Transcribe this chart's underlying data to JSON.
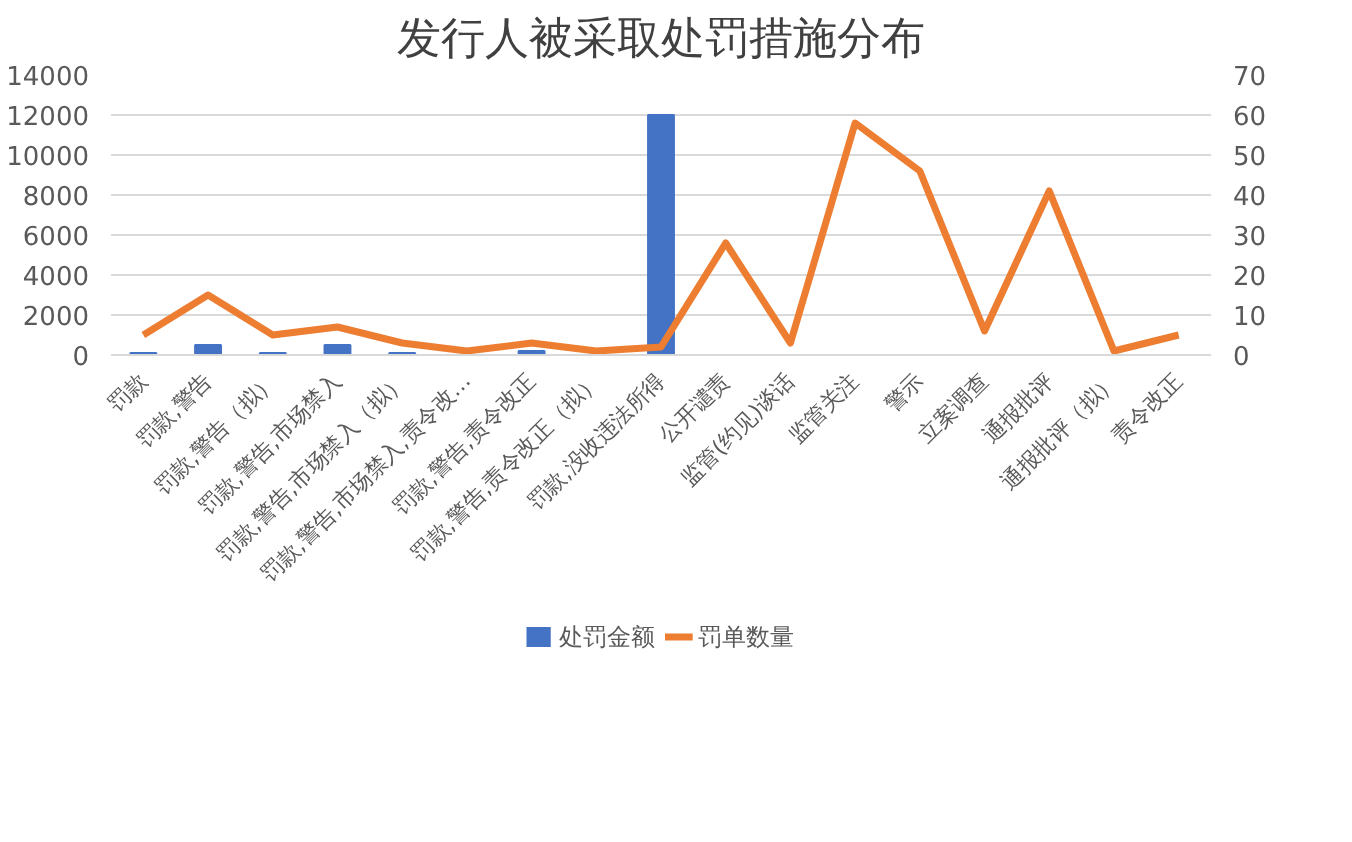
{
  "chart_data": {
    "type": "bar",
    "title": "发行人被采取处罚措施分布",
    "categories": [
      "罚款",
      "罚款,警告",
      "罚款,警告（拟）",
      "罚款,警告,市场禁入",
      "罚款,警告,市场禁入（拟）",
      "罚款,警告,市场禁入,责令改…",
      "罚款,警告,责令改正",
      "罚款,警告,责令改正（拟）",
      "罚款,没收违法所得",
      "公开谴责",
      "监管(约见)谈话",
      "监管关注",
      "警示",
      "立案调查",
      "通报批评",
      "通报批评（拟）",
      "责令改正"
    ],
    "series": [
      {
        "name": "处罚金额",
        "color": "#4472c4",
        "values": [
          100,
          500,
          100,
          500,
          100,
          null,
          200,
          null,
          12000,
          null,
          null,
          null,
          null,
          null,
          null,
          null,
          null
        ]
      },
      {
        "name": "罚单数量",
        "type": "line",
        "axis": "y2",
        "color": "#ed7d31",
        "values": [
          5,
          15,
          5,
          7,
          3,
          1,
          3,
          1,
          2,
          28,
          3,
          58,
          46,
          6,
          41,
          1,
          5
        ]
      }
    ],
    "ylim": [
      0,
      14000
    ],
    "yticks": [
      0,
      2000,
      4000,
      6000,
      8000,
      10000,
      12000,
      14000
    ],
    "y2lim": [
      0,
      70
    ],
    "y2ticks": [
      0,
      10,
      20,
      30,
      40,
      50,
      60,
      70
    ],
    "grid": "y",
    "legend": "bottom"
  }
}
